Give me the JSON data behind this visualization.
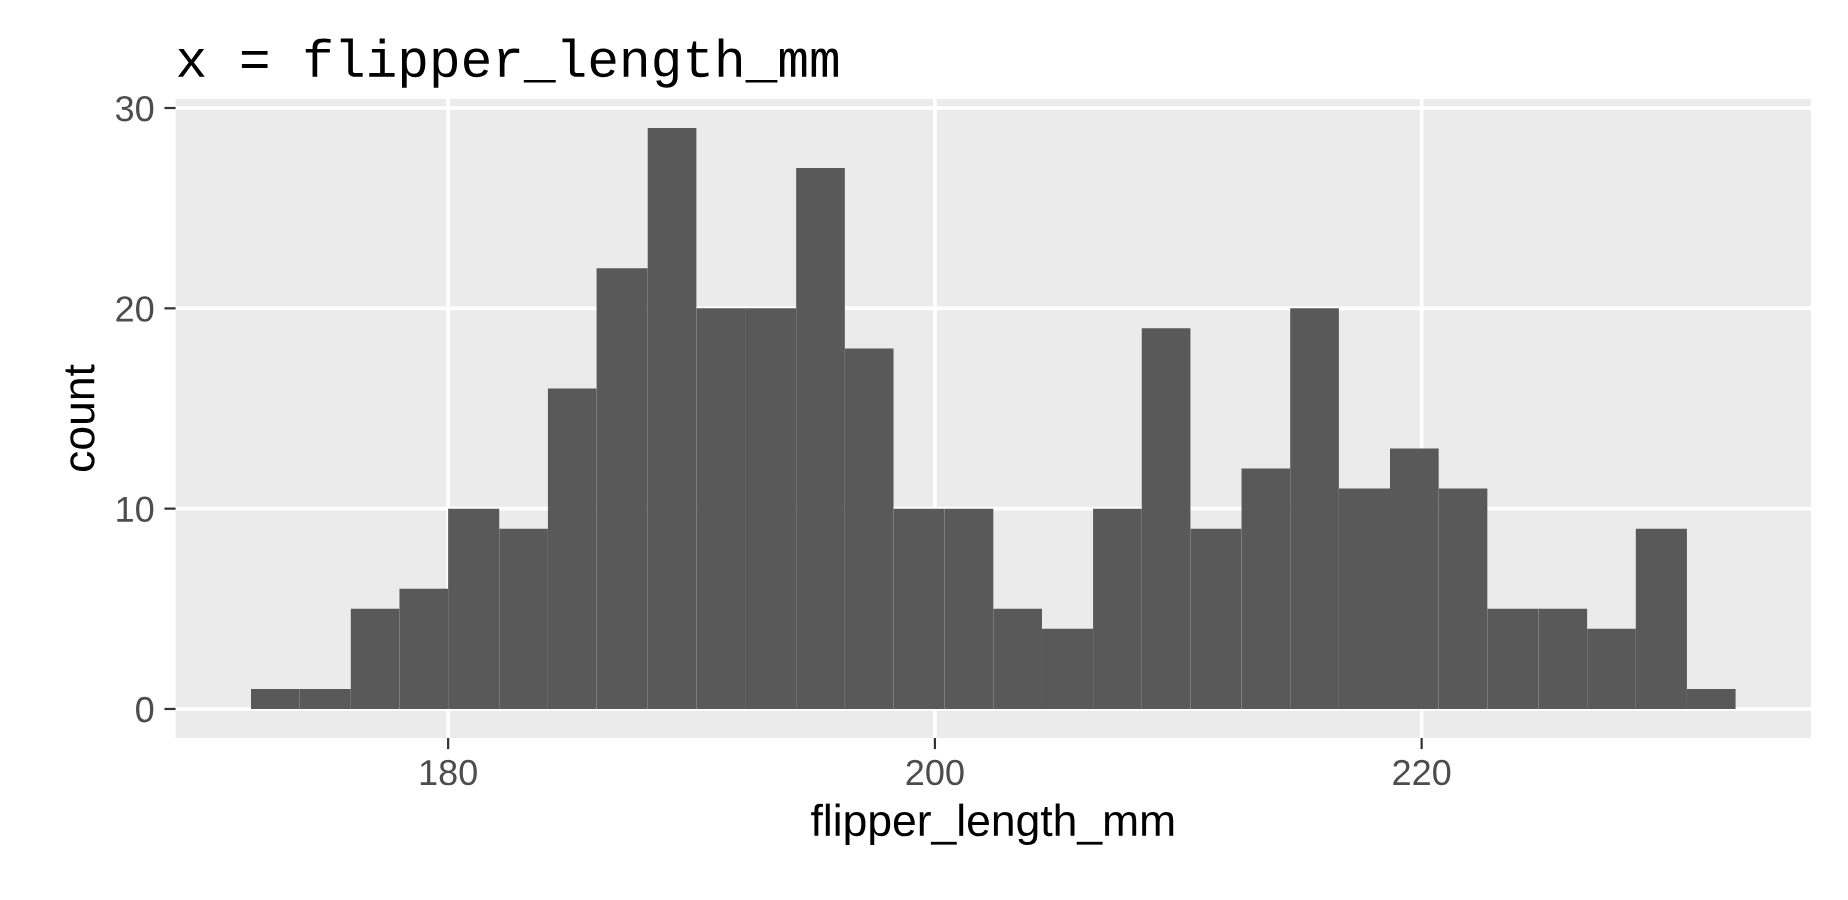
{
  "chart_data": {
    "type": "histogram",
    "title": "x = flipper_length_mm",
    "xlabel": "flipper_length_mm",
    "ylabel": "count",
    "bins": [
      171.9,
      173.9,
      176.0,
      178.0,
      180.0,
      182.1,
      184.1,
      186.1,
      188.2,
      190.2,
      192.2,
      194.3,
      196.3,
      198.3,
      200.4,
      202.4,
      204.4,
      206.5,
      208.5,
      210.5,
      212.6,
      214.6,
      216.6,
      218.7,
      220.7,
      222.7,
      224.8,
      226.8,
      228.8,
      230.9,
      232.9
    ],
    "values": [
      1,
      1,
      5,
      6,
      10,
      9,
      16,
      22,
      29,
      20,
      20,
      27,
      18,
      10,
      10,
      5,
      4,
      10,
      19,
      9,
      12,
      20,
      11,
      13,
      11,
      5,
      5,
      4,
      9,
      1
    ],
    "color": "#595959",
    "xlim": [
      168.8,
      236.0
    ],
    "ylim": [
      -1.45,
      30.45
    ],
    "xticks": [
      180,
      200,
      220
    ],
    "yticks": [
      0,
      10,
      20,
      30
    ],
    "grid": true
  }
}
